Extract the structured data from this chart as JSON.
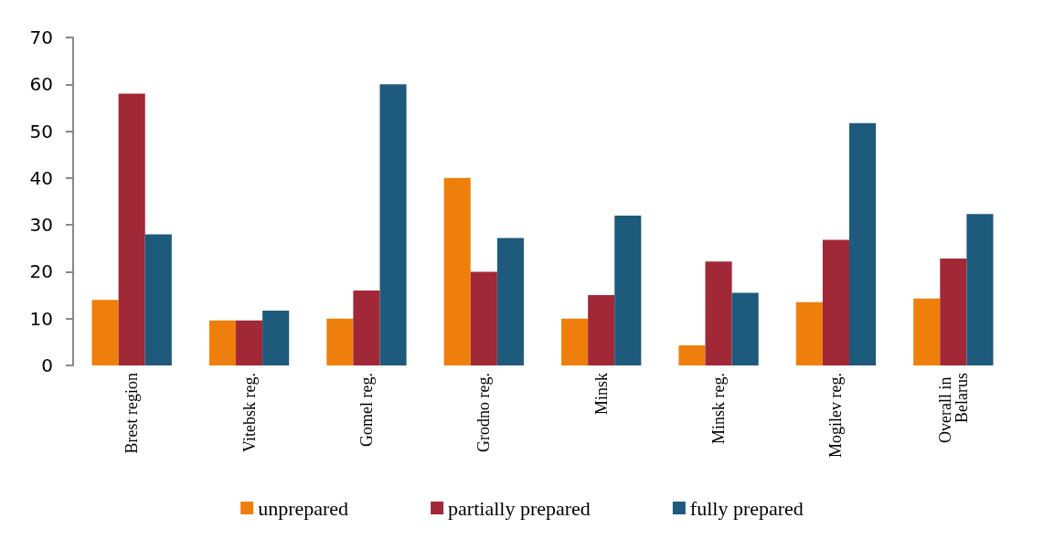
{
  "chart_data": {
    "type": "bar",
    "categories": [
      "Brest region",
      "Vitebsk reg.",
      "Gomel reg.",
      "Grodno reg.",
      "Minsk",
      "Minsk reg.",
      "Mogilev reg.",
      "Overall in Belarus"
    ],
    "series": [
      {
        "name": "unprepared",
        "color": "#ef7f0c",
        "values": [
          14,
          9.6,
          10,
          40,
          10,
          4.3,
          13.5,
          14.3
        ]
      },
      {
        "name": "partially prepared",
        "color": "#a02837",
        "values": [
          58,
          9.6,
          16,
          20,
          15,
          22.2,
          26.8,
          22.8
        ]
      },
      {
        "name": "fully prepared",
        "color": "#1e5a7c",
        "values": [
          28,
          11.7,
          60,
          27.2,
          32,
          15.5,
          51.7,
          32.3
        ]
      }
    ],
    "ylim": [
      0,
      70
    ],
    "yticks": [
      0,
      10,
      20,
      30,
      40,
      50,
      60,
      70
    ],
    "grid": false,
    "legend": "bottom"
  }
}
